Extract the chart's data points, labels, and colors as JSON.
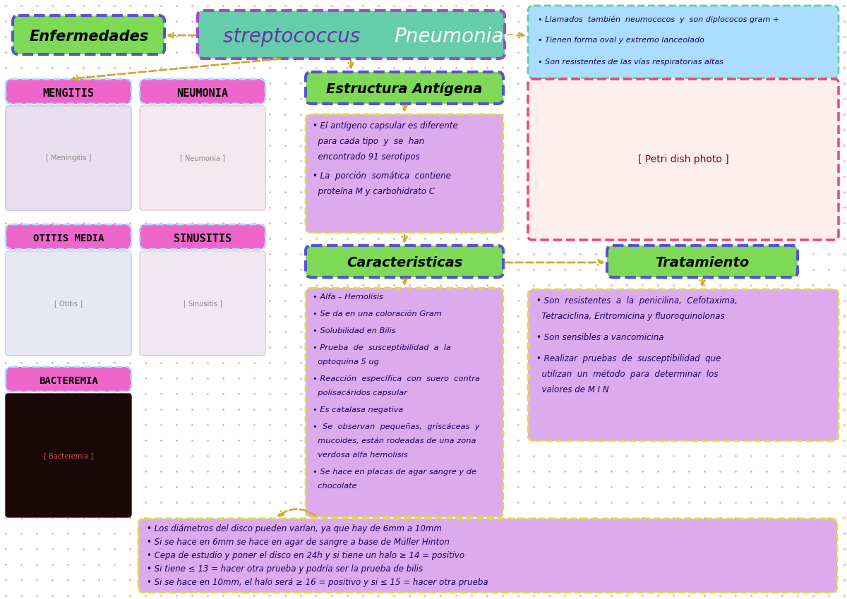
{
  "bg_color": "#ffffff",
  "dot_color": "#e87a7a",
  "title_box_color": "#7ed957",
  "title_box_border": "#5555cc",
  "title_text": "Enfermedades",
  "main_title_bg": "#66ccaa",
  "main_title_border": "#aa44cc",
  "main_title_strep": "streptococcus ",
  "main_title_pneu": "Pneumoniae",
  "main_title_strep_color": "#6633aa",
  "main_title_pneu_color": "#ffffff",
  "info_box1_bg": "#aaddff",
  "info_box1_border": "#66ccaa",
  "info_box1_bullets": [
    "Llamados  también  neumococos  y  son diplococos gram +",
    "Tienen forma oval y extremo lanceolado",
    "Son resistentes de las vías respiratorias altas"
  ],
  "disease_label_bg": "#ee66cc",
  "disease_label_border": "#aaddff",
  "disease_labels": [
    "MENGITIS",
    "NEUMONIA",
    "OTITIS MEDIA",
    "SINUSITIS",
    "BACTEREMIA"
  ],
  "estructura_title_bg": "#7ed957",
  "estructura_title_border": "#5555cc",
  "estructura_content_bg": "#ddaaee",
  "estructura_content_border": "#dddd44",
  "estructura_title": "Estructura Antígena",
  "estructura_bullets": [
    "El antígeno capsular es diferente\npara cada tipo  y  se  han\nencontrado 91 serotipos",
    "La  porción  somática  contiene\nproteína M y carbohidrato C"
  ],
  "caract_title_bg": "#7ed957",
  "caract_title_border": "#5555cc",
  "caract_content_bg": "#ddaaee",
  "caract_content_border": "#dddd44",
  "caract_title": "Caracteristicas",
  "caract_bullets": [
    "Alfa – Hemolisis",
    "Se da en una coloración Gram",
    "Solubilidad en Bilis",
    "Prueba  de  susceptibilidad  a  la\noptoquina 5 ug",
    "Reacción  específica  con  suero  contra\npolisacáridos capsular",
    "Es catalasa negativa",
    " Se  observan  pequeñas,  griscáceas  y\nmucoides, están rodeadas de una zona\nverdosa alfa hemolisis",
    "Se hace en placas de agar sangre y de\nchocolate"
  ],
  "tratamiento_title_bg": "#7ed957",
  "tratamiento_title_border": "#5555cc",
  "tratamiento_content_bg": "#ddaaee",
  "tratamiento_content_border": "#dddd44",
  "tratamiento_title": "Tratamiento",
  "tratamiento_bullets": [
    "Son  resistentes  a  la  penicilina,  Cefotaxima,\nTetraciclina, Eritromicina y fluoroquinolonas",
    "Son sensibles a vancomicina",
    "Realizar  pruebas  de  susceptibilidad  que\nutilizan  un  método  para  determinar  los\nvalores de M I N"
  ],
  "bottom_box_bg": "#ddaaee",
  "bottom_box_border": "#dddd44",
  "bottom_bullets": [
    "Los diámetros del disco pueden varían, ya que hay de 6mm a 10mm",
    "Si se hace en 6mm se hace en agar de sangre a base de Müller Hinton",
    "Cepa de estudio y poner el disco en 24h y si tiene un halo ≥ 14 = positivo",
    "Si tiene ≤ 13 = hacer otra prueba y podría ser la prueba de bilis",
    "Si se hace en 10mm, el halo será ≥ 16 = positivo y si ≤ 15 = hacer otra prueba"
  ],
  "arrow_color": "#ccaa33",
  "text_color": "#1a0066",
  "photo_border": "#ee4477"
}
